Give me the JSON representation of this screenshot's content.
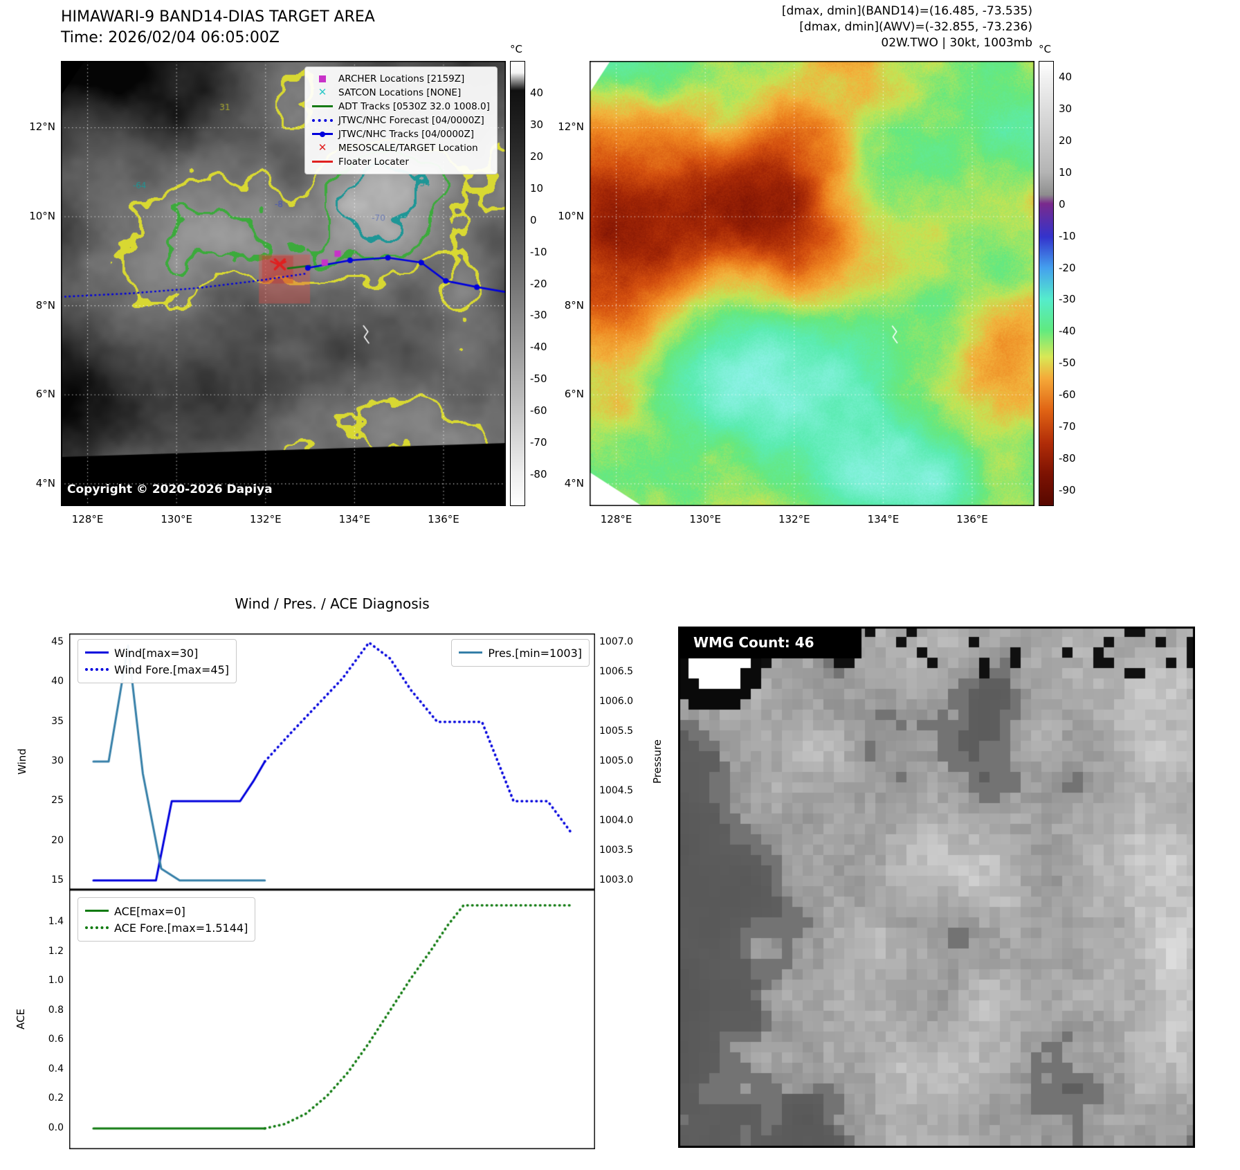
{
  "band14": {
    "title": "HIMAWARI-9 BAND14-DIAS TARGET AREA",
    "time_line": "Time: 2026/02/04 06:05:00Z",
    "copyright": "Copyright © 2020-2026 Dapiya",
    "colorbar_unit": "°C",
    "colorbar_ticks": [
      40,
      30,
      20,
      10,
      0,
      -10,
      -20,
      -30,
      -40,
      -50,
      -60,
      -70,
      -80
    ],
    "x_ticks": [
      "128°E",
      "130°E",
      "132°E",
      "134°E",
      "136°E"
    ],
    "y_ticks": [
      "12°N",
      "10°N",
      "8°N",
      "6°N",
      "4°N"
    ],
    "legend": [
      {
        "label": "ARCHER Locations [2159Z]",
        "type": "square",
        "color": "#c832c8",
        "icon": "archer-square-icon"
      },
      {
        "label": "SATCON Locations [NONE]",
        "type": "x",
        "color": "#2ec8c8",
        "icon": "satcon-x-icon"
      },
      {
        "label": "ADT Tracks [0530Z 32.0 1008.0]",
        "type": "solid",
        "color": "#157a15",
        "icon": "adt-line-icon"
      },
      {
        "label": "JTWC/NHC Forecast [04/0000Z]",
        "type": "dotted",
        "color": "#0000dd",
        "icon": "forecast-dotted-line-icon"
      },
      {
        "label": "JTWC/NHC Tracks [04/0000Z]",
        "type": "linedot",
        "color": "#0000dd",
        "icon": "track-line-dot-icon"
      },
      {
        "label": "MESOSCALE/TARGET Location",
        "type": "X",
        "color": "#e02020",
        "icon": "mesoscale-target-x-icon"
      },
      {
        "label": "Floater Locater",
        "type": "solid",
        "color": "#e02020",
        "icon": "floater-line-icon"
      }
    ]
  },
  "awv": {
    "header_lines": [
      "[dmax, dmin](BAND14)=(16.485, -73.535)",
      "[dmax, dmin](AWV)=(-32.855, -73.236)",
      "02W.TWO | 30kt, 1003mb"
    ],
    "colorbar_unit": "°C",
    "colorbar_ticks": [
      40,
      30,
      20,
      10,
      0,
      -10,
      -20,
      -30,
      -40,
      -50,
      -60,
      -70,
      -80,
      -90
    ],
    "x_ticks": [
      "128°E",
      "130°E",
      "132°E",
      "134°E",
      "136°E"
    ],
    "y_ticks": [
      "12°N",
      "10°N",
      "8°N",
      "6°N",
      "4°N"
    ]
  },
  "wmg": {
    "count_label": "WMG Count: 46"
  },
  "overlays": {
    "graticule_lons": [
      128,
      130,
      132,
      134,
      136
    ],
    "graticule_lats": [
      4,
      6,
      8,
      10,
      12
    ],
    "forecast_track": [
      [
        127.4,
        8.2
      ],
      [
        129.0,
        8.28
      ],
      [
        130.5,
        8.4
      ],
      [
        131.8,
        8.56
      ],
      [
        132.9,
        8.72
      ]
    ],
    "best_track": [
      [
        132.95,
        8.85
      ],
      [
        133.9,
        9.02
      ],
      [
        134.75,
        9.08
      ],
      [
        135.5,
        8.97
      ],
      [
        136.05,
        8.56
      ],
      [
        136.75,
        8.42
      ],
      [
        137.45,
        8.3
      ]
    ],
    "target_x": [
      132.32,
      8.93
    ],
    "floater_line": [
      [
        132.12,
        9.0
      ],
      [
        132.3,
        8.92
      ],
      [
        132.45,
        8.99
      ]
    ],
    "adt_line": [
      [
        132.5,
        8.84
      ],
      [
        133.0,
        8.9
      ]
    ],
    "archer_points": [
      [
        133.33,
        8.97
      ],
      [
        133.62,
        9.17
      ]
    ],
    "target_box": [
      131.85,
      8.05,
      133.0,
      9.15
    ],
    "target_box_inner": [
      131.92,
      8.5,
      132.62,
      9.12
    ],
    "island": [
      [
        134.2,
        7.55
      ],
      [
        134.3,
        7.42
      ],
      [
        134.22,
        7.3
      ],
      [
        134.32,
        7.16
      ]
    ],
    "contour_labels": [
      {
        "text": "31",
        "lon": 131.09,
        "lat": 12.46,
        "color": "#a8a830"
      },
      {
        "text": "-64",
        "lon": 129.14,
        "lat": 10.7,
        "color": "#1e9696"
      },
      {
        "text": "-8",
        "lon": 132.33,
        "lat": 10.28,
        "color": "#4656b4"
      },
      {
        "text": "-70",
        "lon": 134.51,
        "lat": 9.97,
        "color": "#6a7ab4"
      },
      {
        "text": "-54",
        "lon": 135.52,
        "lat": 10.75,
        "color": "#1e9696"
      }
    ]
  },
  "chart_data": [
    {
      "id": "wind_pres",
      "type": "line",
      "title": "Wind / Pres. / ACE Diagnosis",
      "ylabel_left": "Wind",
      "ylabel_right": "Pressure",
      "xlim": [
        0,
        100
      ],
      "y_left": {
        "ticks": [
          15,
          20,
          25,
          30,
          35,
          40,
          45
        ],
        "decimals": 0,
        "lim": [
          13.85,
          46.15
        ]
      },
      "y_right": {
        "ticks": [
          1003.0,
          1003.5,
          1004.0,
          1004.5,
          1005.0,
          1005.5,
          1006.0,
          1006.5,
          1007.0
        ],
        "decimals": 1
      },
      "series": [
        {
          "name": "Wind[max=30]",
          "color": "#0000dd",
          "style": "solid",
          "axis": "left",
          "x": [
            4.6,
            16.5,
            19.5,
            32.5,
            35,
            37.2
          ],
          "y": [
            15,
            15,
            25,
            25,
            27.5,
            30
          ]
        },
        {
          "name": "Wind Fore.[max=45]",
          "color": "#0000dd",
          "style": "dotted",
          "axis": "left",
          "x": [
            37.2,
            42,
            47,
            52,
            57,
            61,
            65,
            70,
            78.5,
            84.5,
            91,
            95.5
          ],
          "y": [
            30,
            33.5,
            37,
            40.5,
            45,
            43,
            39,
            35,
            35,
            25,
            25,
            21
          ]
        },
        {
          "name": "Pres.[min=1003]",
          "color": "#357fa8",
          "style": "solid",
          "axis": "right",
          "x": [
            4.6,
            7.5,
            11.2,
            14,
            17.5,
            21,
            37.2
          ],
          "y": [
            1005,
            1005,
            1006.95,
            1004.8,
            1003.2,
            1003,
            1003
          ]
        }
      ]
    },
    {
      "id": "ace",
      "type": "line",
      "ylabel_left": "ACE",
      "xlim": [
        0,
        100
      ],
      "y_left": {
        "ticks": [
          0.0,
          0.2,
          0.4,
          0.6,
          0.8,
          1.0,
          1.2,
          1.4
        ],
        "decimals": 1,
        "lim": [
          -0.141,
          1.621
        ]
      },
      "series": [
        {
          "name": "ACE[max=0]",
          "color": "#0f7a0f",
          "style": "solid",
          "axis": "left",
          "x": [
            4.6,
            37.2
          ],
          "y": [
            0,
            0
          ]
        },
        {
          "name": "ACE Fore.[max=1.5144]",
          "color": "#0f7a0f",
          "style": "dotted",
          "axis": "left",
          "x": [
            37.2,
            41,
            45,
            49,
            53,
            57,
            61,
            65,
            69,
            72,
            75,
            95.5
          ],
          "y": [
            0,
            0.03,
            0.1,
            0.22,
            0.38,
            0.58,
            0.8,
            1.02,
            1.22,
            1.38,
            1.5144,
            1.5144
          ]
        }
      ]
    }
  ]
}
